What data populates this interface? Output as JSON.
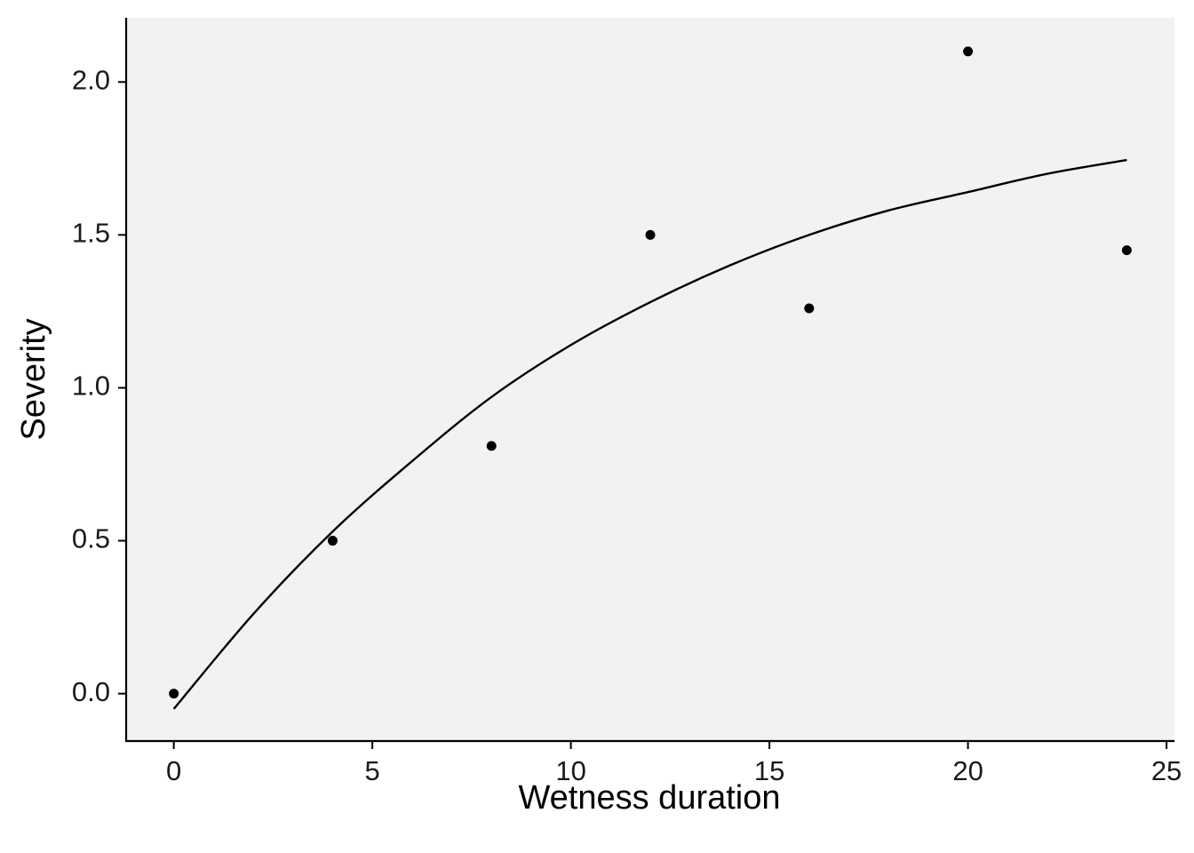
{
  "chart_data": {
    "type": "scatter",
    "title": "",
    "xlabel": "Wetness duration",
    "ylabel": "Severity",
    "xlim": [
      -1.2,
      25.2
    ],
    "ylim": [
      -0.155,
      2.21
    ],
    "xticks": [
      0,
      5,
      10,
      15,
      20,
      25
    ],
    "xtick_labels": [
      "0",
      "5",
      "10",
      "15",
      "20",
      "25"
    ],
    "yticks": [
      0.0,
      0.5,
      1.0,
      1.5,
      2.0
    ],
    "ytick_labels": [
      "0.0",
      "0.5",
      "1.0",
      "1.5",
      "2.0"
    ],
    "grid": false,
    "panel_background": "#f2f2f2",
    "point_color": "#000000",
    "line_color": "#000000",
    "points": [
      {
        "x": 0,
        "y": 0.0
      },
      {
        "x": 4,
        "y": 0.5
      },
      {
        "x": 8,
        "y": 0.81
      },
      {
        "x": 12,
        "y": 1.5
      },
      {
        "x": 16,
        "y": 1.26
      },
      {
        "x": 20,
        "y": 2.1
      },
      {
        "x": 24,
        "y": 1.45
      }
    ],
    "fitted_curve": {
      "x": [
        0,
        2,
        4,
        6,
        8,
        10,
        12,
        14,
        16,
        18,
        20,
        22,
        24
      ],
      "y": [
        -0.05,
        0.26,
        0.53,
        0.76,
        0.97,
        1.14,
        1.28,
        1.4,
        1.5,
        1.58,
        1.64,
        1.7,
        1.745
      ]
    }
  }
}
